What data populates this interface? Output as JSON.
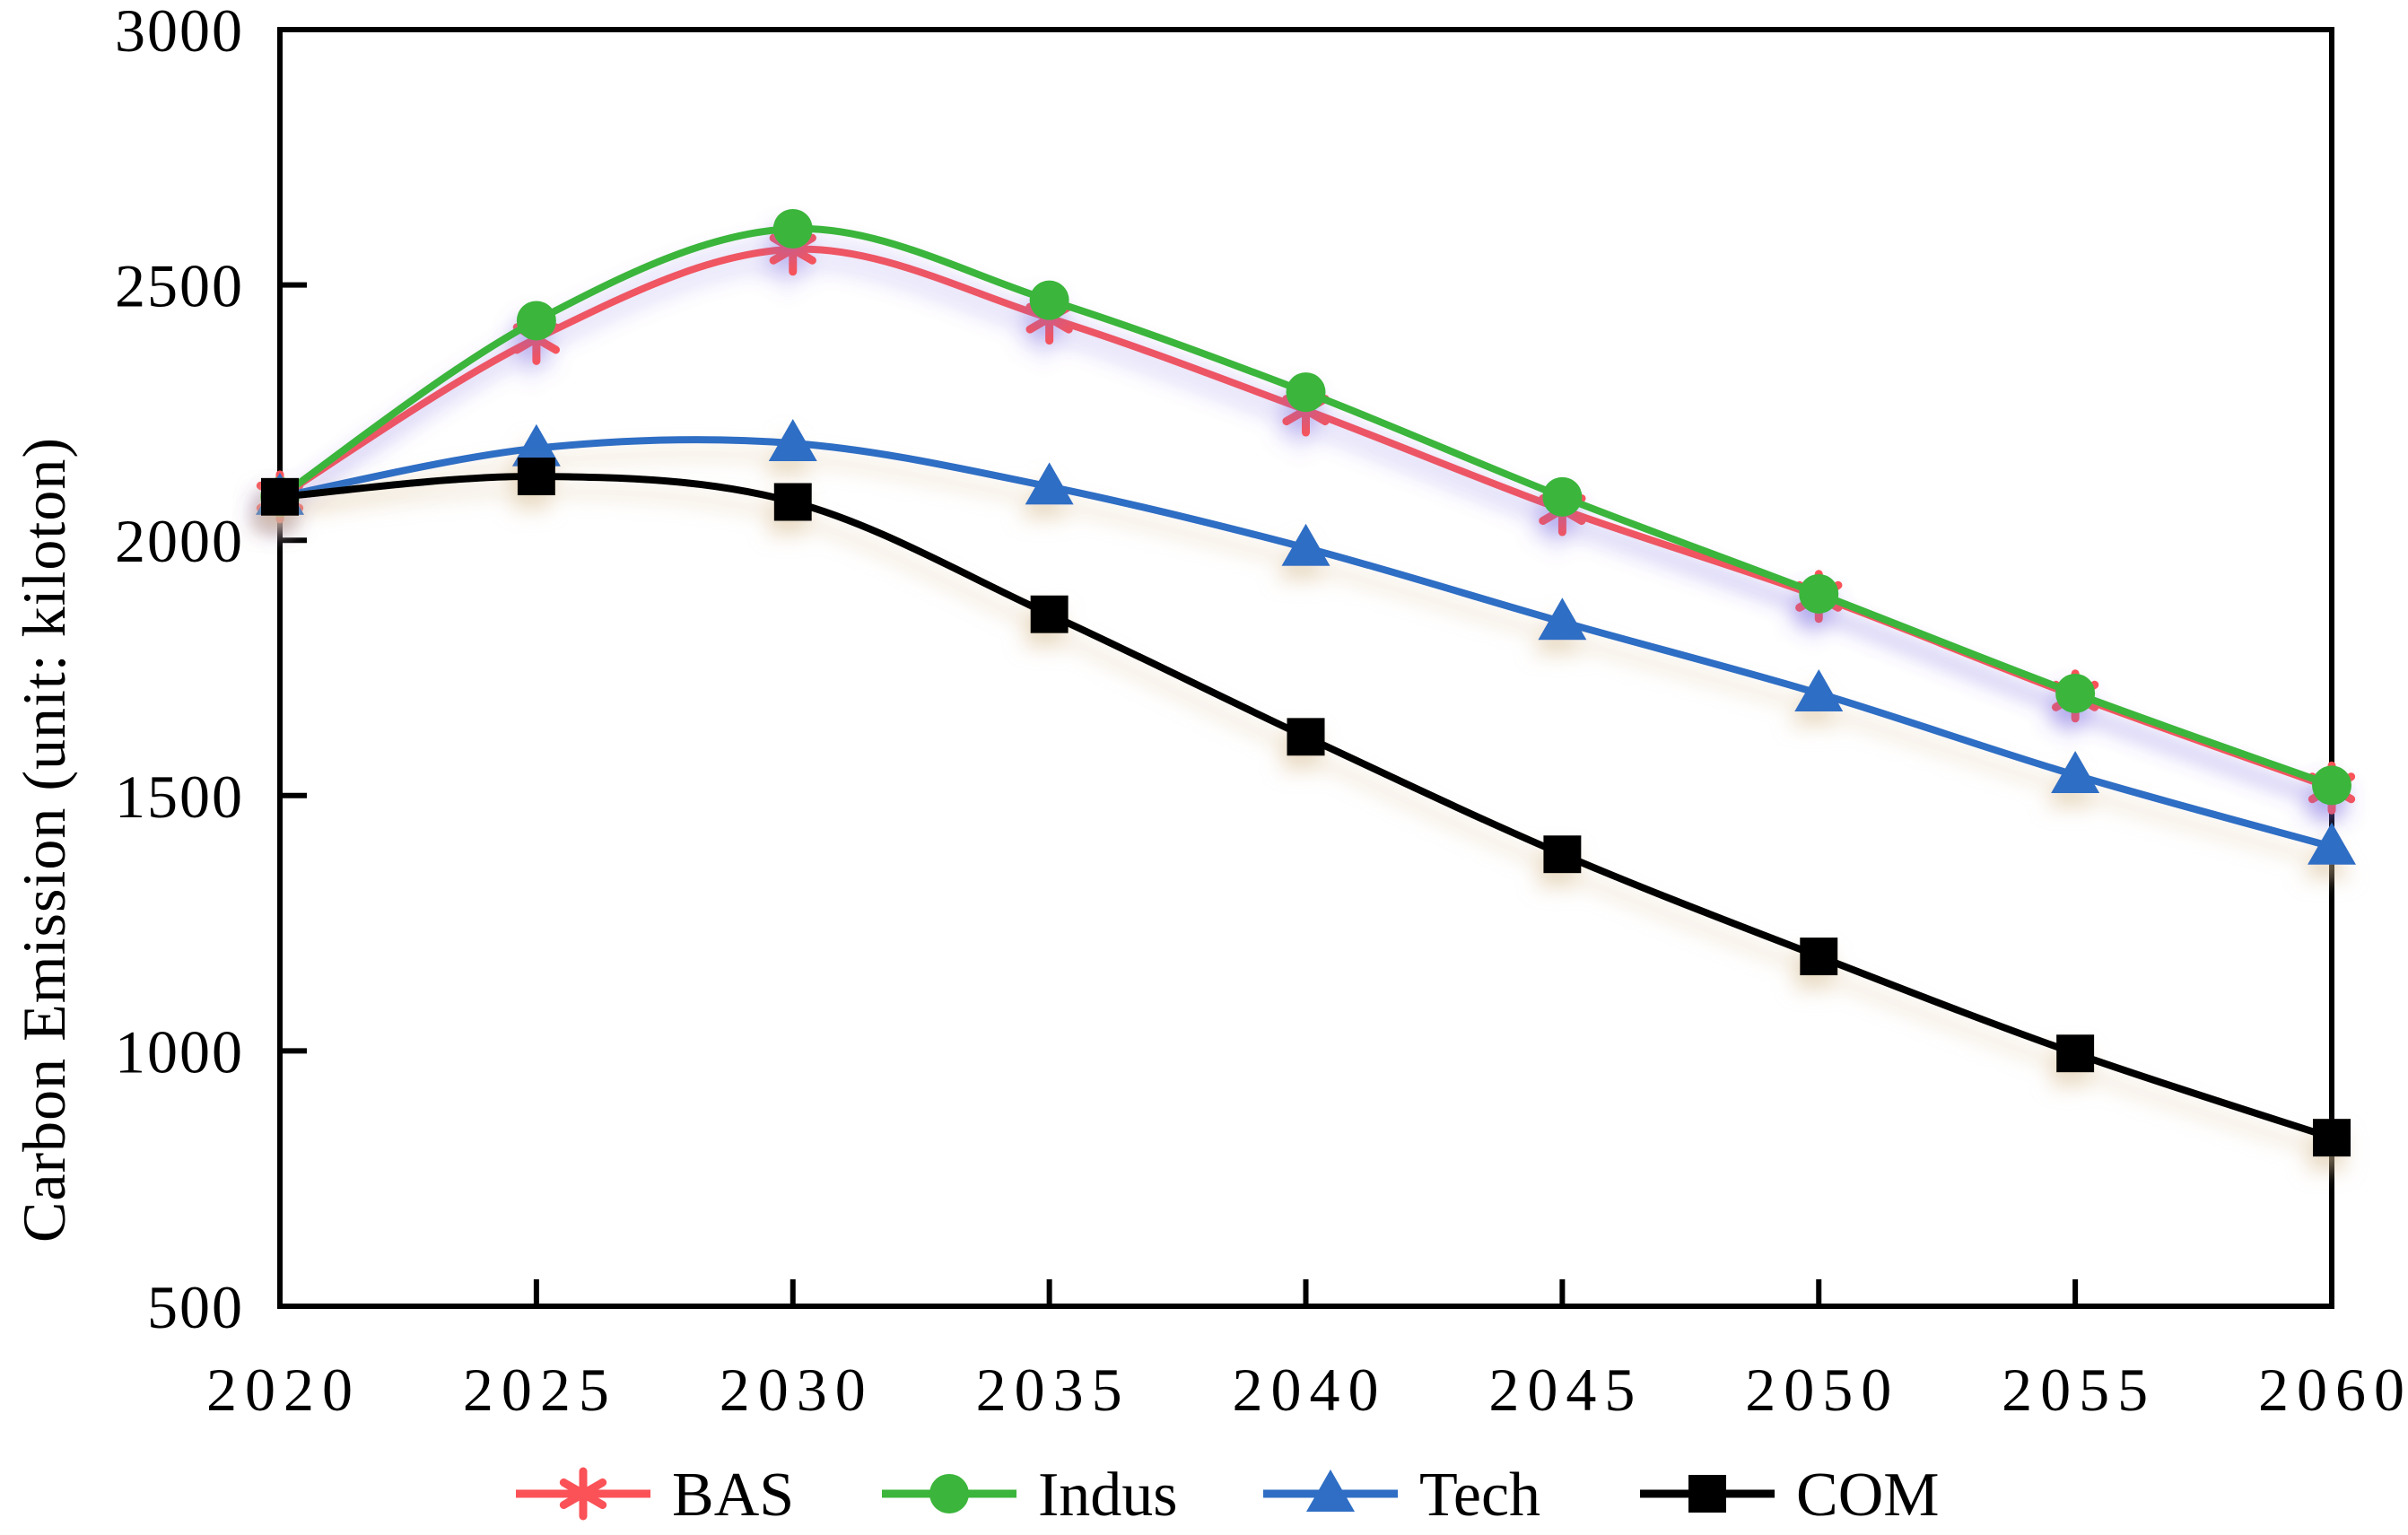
{
  "figure": {
    "background": "#ffffff",
    "shadow_purple": "#7b6ce0",
    "shadow_tan": "#d9bf96"
  },
  "chart_data": {
    "type": "line",
    "title": "",
    "xlabel": "",
    "ylabel": "Carbon Emission (unit: kiloton)",
    "x": [
      2020,
      2025,
      2030,
      2035,
      2040,
      2045,
      2050,
      2055,
      2060
    ],
    "xlim": [
      2020,
      2060
    ],
    "ylim": [
      500,
      3000
    ],
    "x_ticks": [
      2020,
      2025,
      2030,
      2035,
      2040,
      2045,
      2050,
      2055,
      2060
    ],
    "y_ticks": [
      500,
      1000,
      1500,
      2000,
      2500,
      3000
    ],
    "grid": false,
    "legend_position": "bottom",
    "smooth": true,
    "series": [
      {
        "name": "BAS",
        "marker": "asterisk",
        "color": "#fa5257",
        "values": [
          2085,
          2395,
          2570,
          2435,
          2255,
          2060,
          1890,
          1695,
          1515
        ]
      },
      {
        "name": "Indus",
        "marker": "circle",
        "color": "#3bb53b",
        "values": [
          2085,
          2430,
          2610,
          2470,
          2290,
          2085,
          1895,
          1700,
          1520
        ]
      },
      {
        "name": "Tech",
        "marker": "triangle",
        "color": "#2f6ec4",
        "values": [
          2085,
          2180,
          2190,
          2105,
          1985,
          1840,
          1700,
          1540,
          1400
        ]
      },
      {
        "name": "COM",
        "marker": "square",
        "color": "#000000",
        "values": [
          2085,
          2125,
          2075,
          1855,
          1615,
          1385,
          1185,
          995,
          830
        ]
      }
    ]
  }
}
